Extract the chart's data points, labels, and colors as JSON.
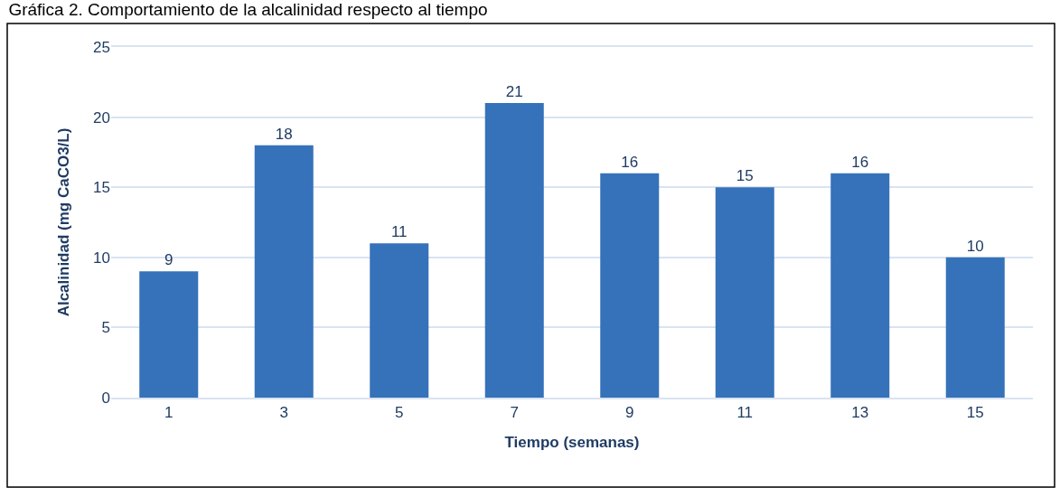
{
  "chart_data": {
    "type": "bar",
    "title": "Gráfica 2. Comportamiento de la alcalinidad respecto al tiempo",
    "xlabel": "Tiempo (semanas)",
    "ylabel": "Alcalinidad (mg CaCO3/L)",
    "categories": [
      "1",
      "3",
      "5",
      "7",
      "9",
      "11",
      "13",
      "15"
    ],
    "values": [
      9,
      18,
      11,
      21,
      16,
      15,
      16,
      10
    ],
    "color": "#3572ba",
    "ylim": [
      0,
      25
    ],
    "yticks": [
      0,
      5,
      10,
      15,
      20,
      25
    ],
    "grid": "y",
    "data_labels": true
  }
}
